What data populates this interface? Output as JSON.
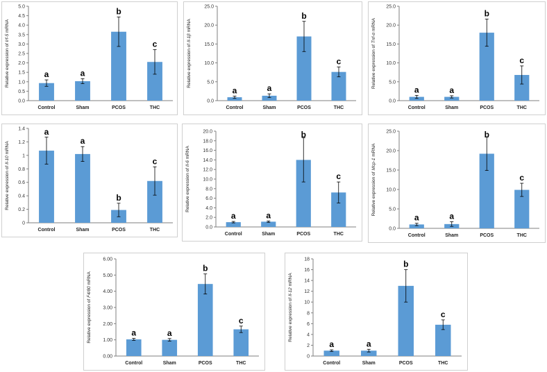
{
  "colors": {
    "bar": "#5B9BD5",
    "axis": "#7f7f7f",
    "error": "#000000"
  },
  "chart_data": [
    {
      "type": "bar",
      "gene": "Irf-5",
      "ylabel_prefix": "Relative expression of ",
      "ylabel_suffix": " mRNA",
      "categories": [
        "Control",
        "Sham",
        "PCOS",
        "THC"
      ],
      "values": [
        0.93,
        1.03,
        3.65,
        2.05
      ],
      "errors": [
        0.17,
        0.13,
        0.78,
        0.65
      ],
      "letters": [
        "a",
        "a",
        "b",
        "c"
      ],
      "ylim": [
        0,
        5
      ],
      "ticks": [
        "0.0",
        "0.5",
        "1.0",
        "1.5",
        "2.0",
        "2.5",
        "3.0",
        "3.5",
        "4.0",
        "4.5",
        "5.0"
      ]
    },
    {
      "type": "bar",
      "gene": "Il-1β",
      "ylabel_prefix": "Relative expression of ",
      "ylabel_suffix": " mRNA",
      "categories": [
        "Control",
        "Sham",
        "PCOS",
        "THC"
      ],
      "values": [
        0.9,
        1.3,
        17.0,
        7.6
      ],
      "errors": [
        0.3,
        0.5,
        4.0,
        1.3
      ],
      "letters": [
        "a",
        "a",
        "b",
        "c"
      ],
      "ylim": [
        0,
        25
      ],
      "ticks": [
        "0.0",
        "5.0",
        "10.0",
        "15.0",
        "20.0",
        "25.0"
      ]
    },
    {
      "type": "bar",
      "gene": "Tnf-α",
      "ylabel_prefix": "Relative expression of ",
      "ylabel_suffix": " mRNA",
      "categories": [
        "Control",
        "Sham",
        "PCOS",
        "THC"
      ],
      "values": [
        1.0,
        1.0,
        18.0,
        6.8
      ],
      "errors": [
        0.4,
        0.3,
        3.6,
        2.4
      ],
      "letters": [
        "a",
        "a",
        "b",
        "c"
      ],
      "ylim": [
        0,
        25
      ],
      "ticks": [
        "0.0",
        "5.0",
        "10.0",
        "15.0",
        "20.0",
        "25.0"
      ]
    },
    {
      "type": "bar",
      "gene": "Il-10",
      "ylabel_prefix": "Relative expression of ",
      "ylabel_suffix": " mRNA",
      "categories": [
        "Control",
        "Sham",
        "PCOS",
        "THC"
      ],
      "values": [
        1.07,
        1.02,
        0.19,
        0.62
      ],
      "errors": [
        0.2,
        0.11,
        0.1,
        0.21
      ],
      "letters": [
        "a",
        "a",
        "b",
        "c"
      ],
      "ylim": [
        0,
        1.4
      ],
      "ticks": [
        "0",
        "0.2",
        "0.4",
        "0.6",
        "0.8",
        "1",
        "1.2",
        "1.4"
      ]
    },
    {
      "type": "bar",
      "gene": "Il-6",
      "ylabel_prefix": "Relative expression of ",
      "ylabel_suffix": " mRNA",
      "categories": [
        "Control",
        "Sham",
        "PCOS",
        "THC"
      ],
      "values": [
        1.0,
        1.1,
        14.0,
        7.2
      ],
      "errors": [
        0.15,
        0.15,
        4.6,
        2.2
      ],
      "letters": [
        "a",
        "a",
        "b",
        "c"
      ],
      "ylim": [
        0,
        20
      ],
      "ticks": [
        "0.0",
        "2.0",
        "4.0",
        "6.0",
        "8.0",
        "10.0",
        "12.0",
        "14.0",
        "16.0",
        "18.0",
        "20.0"
      ]
    },
    {
      "type": "bar",
      "gene": "Mcp-1",
      "ylabel_prefix": "Relative expression of ",
      "ylabel_suffix": " mRNA",
      "categories": [
        "Control",
        "Sham",
        "PCOS",
        "THC"
      ],
      "values": [
        1.0,
        1.1,
        19.2,
        9.9
      ],
      "errors": [
        0.3,
        0.6,
        4.3,
        1.7
      ],
      "letters": [
        "a",
        "a",
        "b",
        "c"
      ],
      "ylim": [
        0,
        25
      ],
      "ticks": [
        "0.0",
        "5.0",
        "10.0",
        "15.0",
        "20.0",
        "25.0"
      ]
    },
    {
      "type": "bar",
      "gene": "F4/80",
      "ylabel_prefix": "Relative expression of ",
      "ylabel_suffix": " mRNA",
      "categories": [
        "Control",
        "Sham",
        "PCOS",
        "THC"
      ],
      "values": [
        1.03,
        1.0,
        4.45,
        1.65
      ],
      "errors": [
        0.06,
        0.08,
        0.62,
        0.2
      ],
      "letters": [
        "a",
        "a",
        "b",
        "c"
      ],
      "ylim": [
        0,
        6
      ],
      "ticks": [
        "0.00",
        "1.00",
        "2.00",
        "3.00",
        "4.00",
        "5.00",
        "6.00"
      ]
    },
    {
      "type": "bar",
      "gene": "Il-12",
      "ylabel_prefix": "Relative expression of ",
      "ylabel_suffix": " mRNA",
      "categories": [
        "Control",
        "Sham",
        "PCOS",
        "THC"
      ],
      "values": [
        1.0,
        1.0,
        13.0,
        5.8
      ],
      "errors": [
        0.15,
        0.25,
        3.0,
        0.9
      ],
      "letters": [
        "a",
        "a",
        "b",
        "c"
      ],
      "ylim": [
        0,
        18
      ],
      "ticks": [
        "0",
        "2",
        "4",
        "6",
        "8",
        "10",
        "12",
        "14",
        "16",
        "18"
      ]
    }
  ]
}
